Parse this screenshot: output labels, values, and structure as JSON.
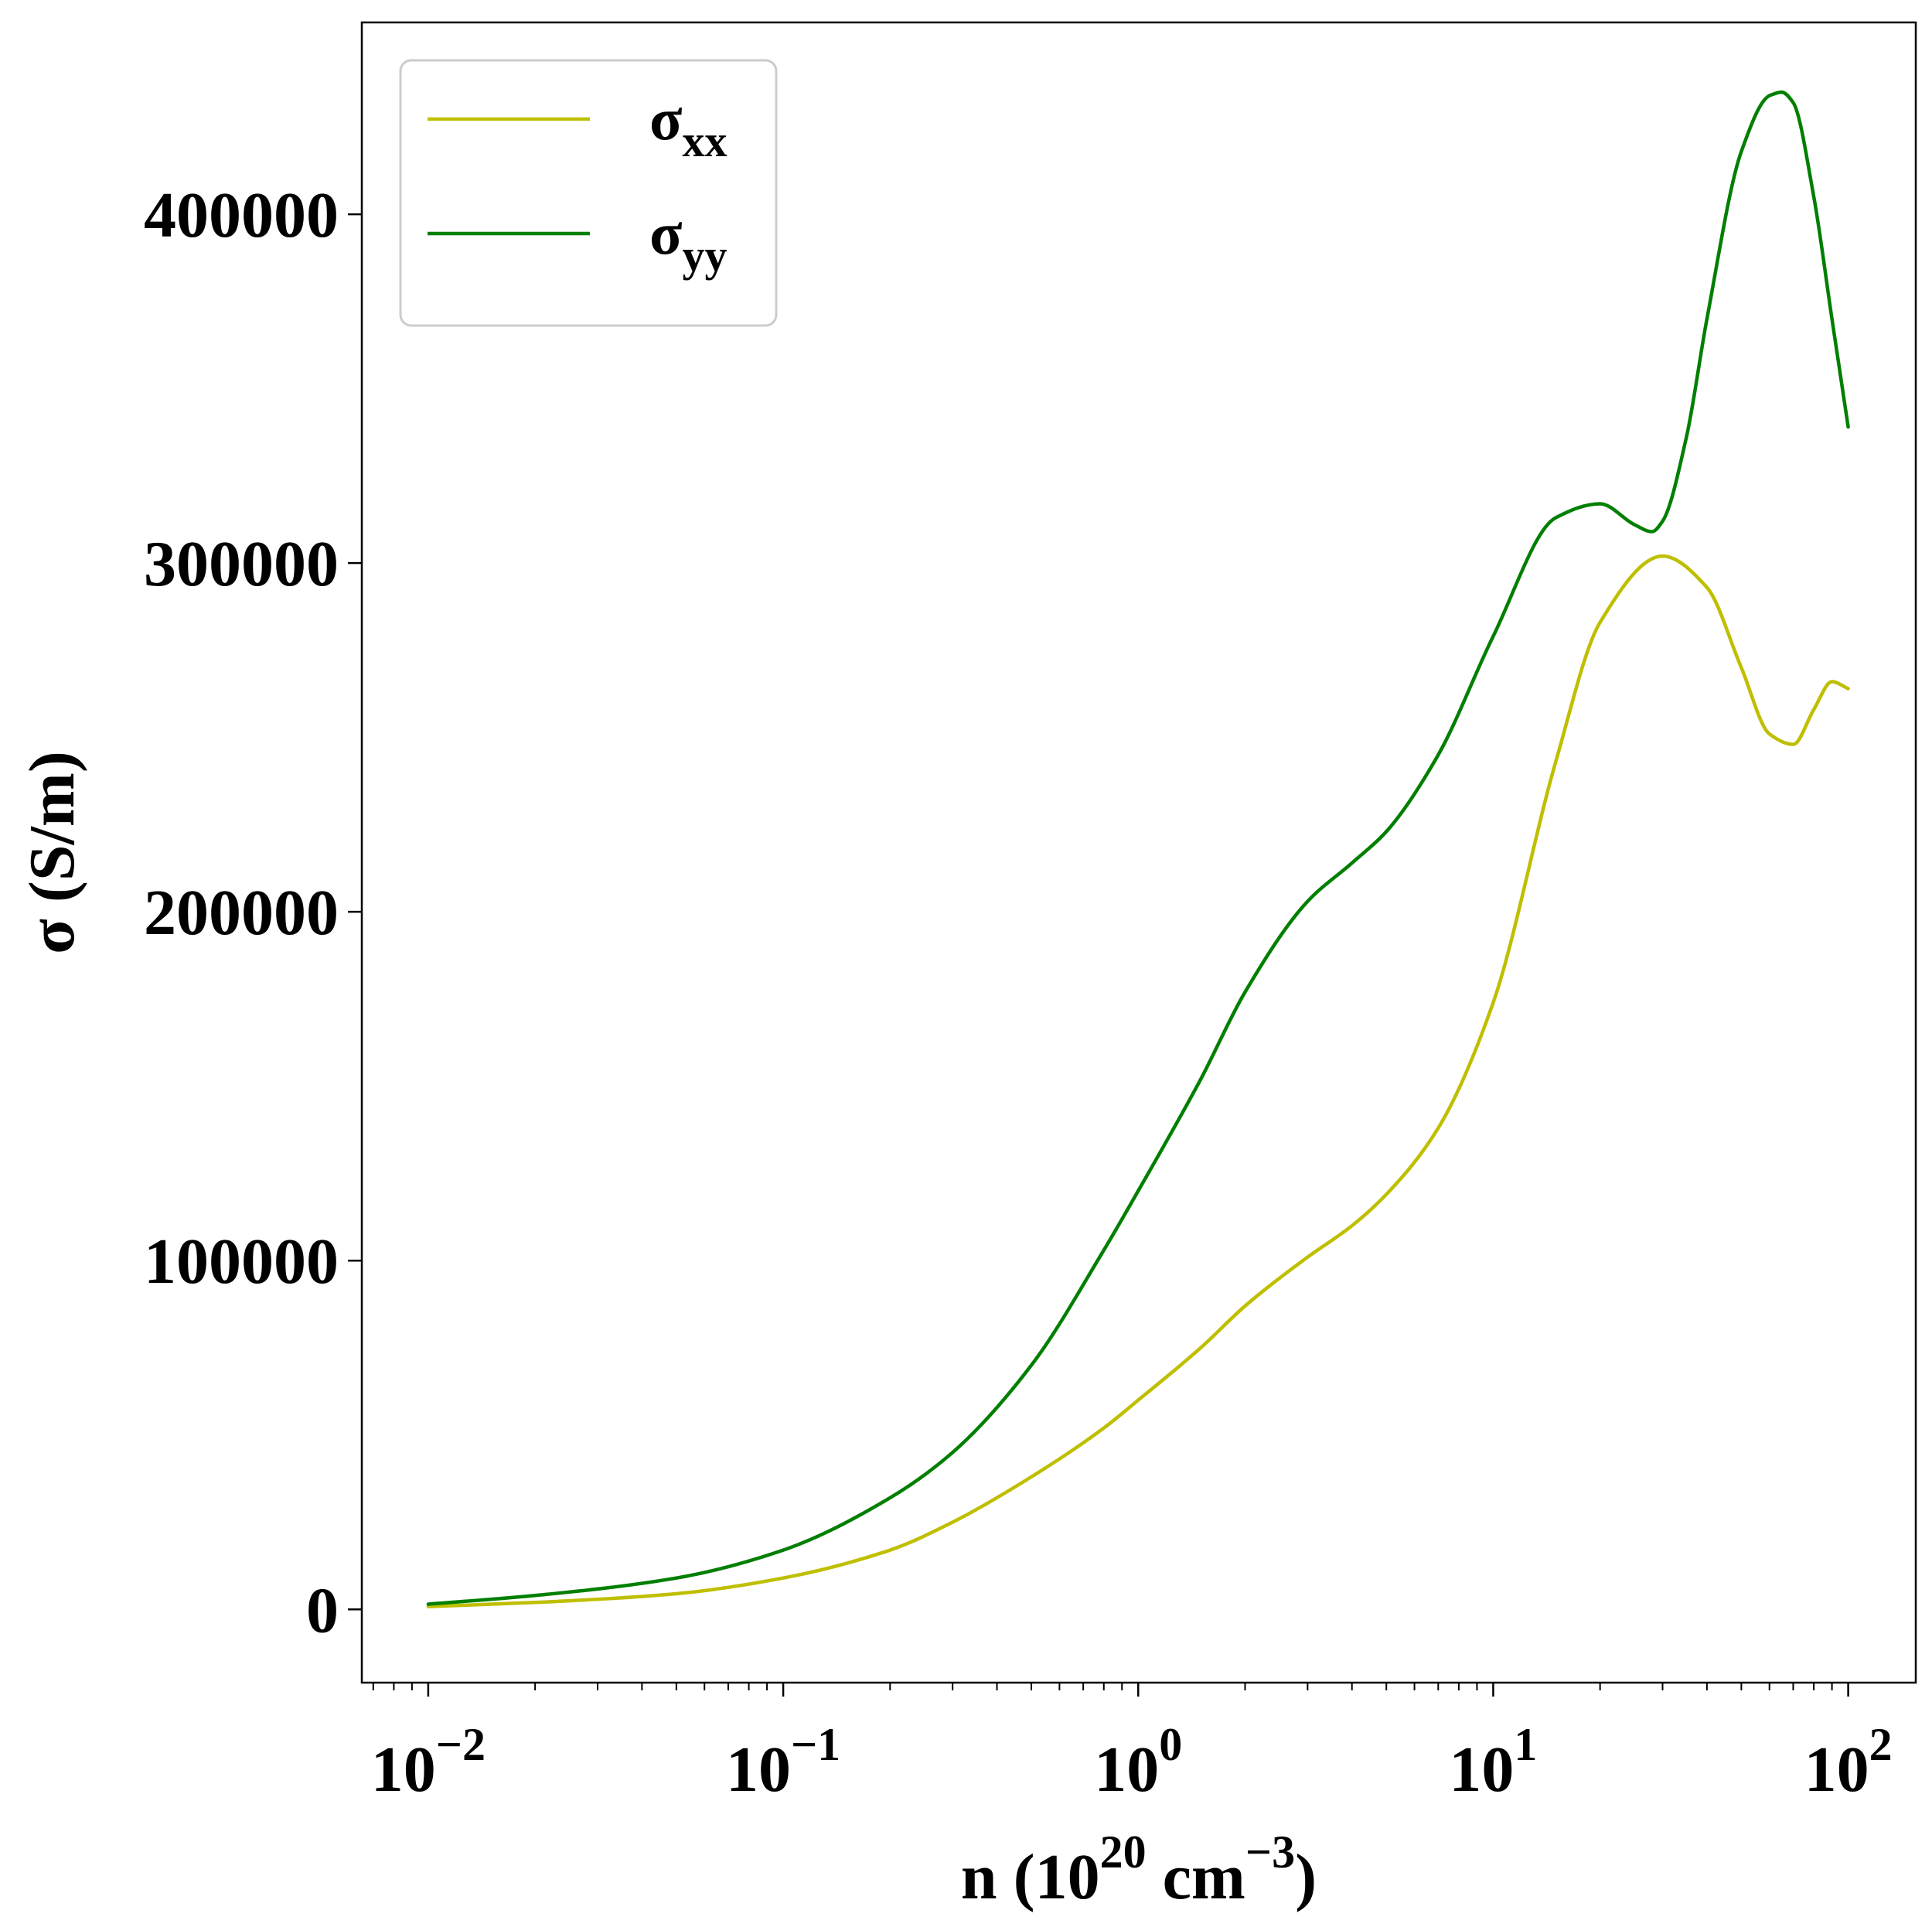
{
  "chart_data": {
    "type": "line",
    "title": "",
    "xlabel": "n (10^20 cm^-3)",
    "xlabel_parts": {
      "prefix": "n (10",
      "sup1": "20",
      "middle": " cm",
      "sup2": "−3",
      "suffix": ")"
    },
    "ylabel": "σ (S/m)",
    "xscale": "log",
    "xlim": [
      0.0065,
      155
    ],
    "ylim": [
      -21000,
      455000
    ],
    "x_ticks": [
      {
        "value": 0.01,
        "base": "10",
        "exp": "−2"
      },
      {
        "value": 0.1,
        "base": "10",
        "exp": "−1"
      },
      {
        "value": 1,
        "base": "10",
        "exp": "0"
      },
      {
        "value": 10,
        "base": "10",
        "exp": "1"
      },
      {
        "value": 100,
        "base": "10",
        "exp": "2"
      }
    ],
    "y_ticks": [
      0,
      100000,
      200000,
      300000,
      400000
    ],
    "y_tick_labels": [
      "0",
      "100000",
      "200000",
      "300000",
      "400000"
    ],
    "grid": false,
    "legend_position": "top-left",
    "series": [
      {
        "name": "σxx",
        "label_base": "σ",
        "label_sub": "xx",
        "color": "#bfbf00",
        "x": [
          0.01,
          0.02,
          0.05,
          0.1,
          0.2,
          0.3,
          0.5,
          0.8,
          1.0,
          1.5,
          2.0,
          3.0,
          4.0,
          5.0,
          7.0,
          10.0,
          15.0,
          20.0,
          30.0,
          40.0,
          50.0,
          60.0,
          70.0,
          80.0,
          90.0,
          100.0
        ],
        "y": [
          800,
          2000,
          4500,
          9000,
          17000,
          25000,
          38000,
          52000,
          60000,
          75000,
          87000,
          101000,
          110000,
          119000,
          138000,
          174000,
          243000,
          283000,
          302000,
          293000,
          270000,
          251000,
          248000,
          258000,
          266000,
          264000
        ]
      },
      {
        "name": "σyy",
        "label_base": "σ",
        "label_sub": "yy",
        "color": "#007f00",
        "x": [
          0.01,
          0.02,
          0.05,
          0.1,
          0.2,
          0.3,
          0.5,
          0.8,
          1.0,
          1.5,
          2.0,
          3.0,
          4.0,
          5.0,
          7.0,
          10.0,
          15.0,
          20.0,
          25.0,
          28.0,
          30.0,
          35.0,
          40.0,
          50.0,
          60.0,
          65.0,
          70.0,
          80.0,
          90.0,
          100.0
        ],
        "y": [
          1500,
          4000,
          9000,
          17000,
          32000,
          45000,
          70000,
          103000,
          120000,
          152000,
          177000,
          203000,
          214000,
          223000,
          245000,
          279000,
          313000,
          317000,
          311000,
          309000,
          312000,
          336000,
          370000,
          418000,
          434000,
          435000,
          432000,
          405000,
          370000,
          339000
        ]
      }
    ]
  }
}
